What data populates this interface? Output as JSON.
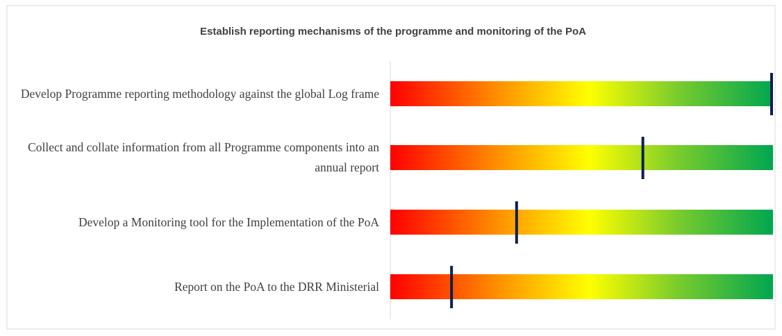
{
  "chart_data": {
    "type": "bar",
    "title": "Establish  reporting mechanisms of the programme and monitoring of the PoA",
    "categories": [
      "Develop Programme reporting methodology against the global Log frame",
      "Collect and collate information from all Programme components into an annual report",
      "Develop a Monitoring tool for the Implementation of the PoA",
      "Report on the PoA to the DRR Ministerial"
    ],
    "values": [
      100,
      66,
      33,
      16
    ],
    "color": "#0d1f4f",
    "xlim": [
      0,
      100
    ]
  }
}
